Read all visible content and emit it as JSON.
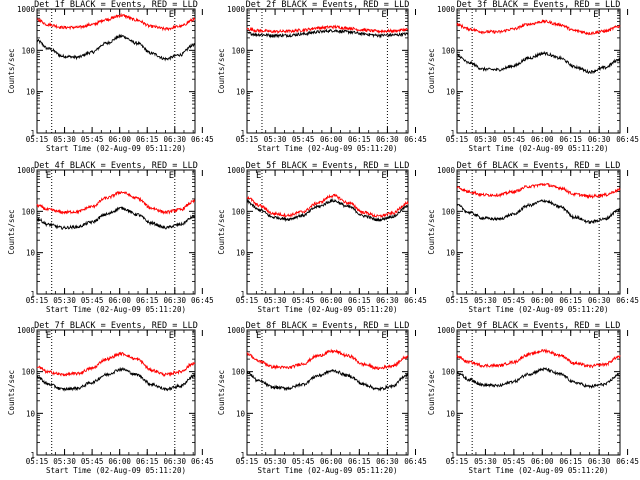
{
  "page": {
    "background": "#ffffff",
    "series_colors": {
      "events": "#000000",
      "lld": "#ff0000"
    }
  },
  "chart_data": [
    {
      "type": "line",
      "title": "Det 1f BLACK = Events, RED = LLD",
      "xlabel": "Start Time (02-Aug-09 05:11:20)",
      "ylabel": "Counts/sec",
      "yscale": "log",
      "ylim": [
        1,
        1000
      ],
      "xlim": [
        14,
        100
      ],
      "x_ticks": [
        "05:15",
        "05:30",
        "05:45",
        "06:00",
        "06:15",
        "06:30",
        "06:45"
      ],
      "y_ticks": [
        "1",
        "10",
        "100",
        "1000"
      ],
      "markers": [
        {
          "x": 22,
          "label": ""
        },
        {
          "x": 89,
          "label": "E"
        }
      ],
      "series": [
        {
          "name": "Events",
          "color": "#000000",
          "x": [
            14,
            20,
            28,
            36,
            44,
            52,
            60,
            68,
            76,
            84,
            92,
            100
          ],
          "values": [
            170,
            110,
            72,
            68,
            90,
            150,
            220,
            150,
            85,
            62,
            78,
            140
          ]
        },
        {
          "name": "LLD",
          "color": "#ff0000",
          "x": [
            14,
            20,
            28,
            36,
            44,
            52,
            60,
            68,
            76,
            84,
            92,
            100
          ],
          "values": [
            550,
            420,
            360,
            360,
            420,
            560,
            700,
            540,
            380,
            330,
            380,
            560
          ]
        }
      ]
    },
    {
      "type": "line",
      "title": "Det 2f BLACK = Events, RED = LLD",
      "xlabel": "Start Time (02-Aug-09 05:11:20)",
      "ylabel": "Counts/sec",
      "yscale": "log",
      "ylim": [
        1,
        1000
      ],
      "xlim": [
        14,
        100
      ],
      "x_ticks": [
        "05:15",
        "05:30",
        "05:45",
        "06:00",
        "06:15",
        "06:30",
        "06:45"
      ],
      "y_ticks": [
        "1",
        "10",
        "100",
        "1000"
      ],
      "markers": [
        {
          "x": 22,
          "label": ""
        },
        {
          "x": 89,
          "label": "E"
        }
      ],
      "series": [
        {
          "name": "Events",
          "color": "#000000",
          "x": [
            14,
            20,
            28,
            36,
            44,
            52,
            60,
            68,
            76,
            84,
            92,
            100
          ],
          "values": [
            260,
            240,
            230,
            230,
            250,
            280,
            300,
            280,
            250,
            230,
            235,
            250
          ]
        },
        {
          "name": "LLD",
          "color": "#ff0000",
          "x": [
            14,
            20,
            28,
            36,
            44,
            52,
            60,
            68,
            76,
            84,
            92,
            100
          ],
          "values": [
            330,
            300,
            285,
            290,
            310,
            350,
            370,
            345,
            310,
            290,
            295,
            320
          ]
        }
      ]
    },
    {
      "type": "line",
      "title": "Det 3f BLACK = Events, RED = LLD",
      "xlabel": "Start Time (02-Aug-09 05:11:20)",
      "ylabel": "Counts/sec",
      "yscale": "log",
      "ylim": [
        1,
        1000
      ],
      "xlim": [
        14,
        100
      ],
      "x_ticks": [
        "05:15",
        "05:30",
        "05:45",
        "06:00",
        "06:15",
        "06:30",
        "06:45"
      ],
      "y_ticks": [
        "1",
        "10",
        "100",
        "1000"
      ],
      "markers": [
        {
          "x": 22,
          "label": ""
        },
        {
          "x": 89,
          "label": "E"
        }
      ],
      "series": [
        {
          "name": "Events",
          "color": "#000000",
          "x": [
            14,
            20,
            28,
            36,
            44,
            52,
            60,
            68,
            76,
            84,
            92,
            100
          ],
          "values": [
            75,
            50,
            35,
            34,
            42,
            65,
            85,
            65,
            40,
            30,
            38,
            60
          ]
        },
        {
          "name": "LLD",
          "color": "#ff0000",
          "x": [
            14,
            20,
            28,
            36,
            44,
            52,
            60,
            68,
            76,
            84,
            92,
            100
          ],
          "values": [
            420,
            330,
            280,
            280,
            330,
            430,
            500,
            420,
            300,
            260,
            290,
            380
          ]
        }
      ]
    },
    {
      "type": "line",
      "title": "Det 4f BLACK = Events, RED = LLD",
      "xlabel": "Start Time (02-Aug-09 05:11:20)",
      "ylabel": "Counts/sec",
      "yscale": "log",
      "ylim": [
        1,
        1000
      ],
      "xlim": [
        14,
        100
      ],
      "x_ticks": [
        "05:15",
        "05:30",
        "05:45",
        "06:00",
        "06:15",
        "06:30",
        "06:45"
      ],
      "y_ticks": [
        "1",
        "10",
        "100",
        "1000"
      ],
      "markers": [
        {
          "x": 22,
          "label": "E"
        },
        {
          "x": 89,
          "label": "E"
        }
      ],
      "series": [
        {
          "name": "Events",
          "color": "#000000",
          "x": [
            14,
            20,
            28,
            36,
            44,
            52,
            60,
            68,
            76,
            84,
            92,
            100
          ],
          "values": [
            65,
            48,
            40,
            42,
            55,
            85,
            120,
            85,
            52,
            40,
            48,
            75
          ]
        },
        {
          "name": "LLD",
          "color": "#ff0000",
          "x": [
            14,
            20,
            28,
            36,
            44,
            52,
            60,
            68,
            76,
            84,
            92,
            100
          ],
          "values": [
            140,
            110,
            95,
            98,
            130,
            210,
            290,
            210,
            120,
            95,
            110,
            175
          ]
        }
      ]
    },
    {
      "type": "line",
      "title": "Det 5f BLACK = Events, RED = LLD",
      "xlabel": "Start Time (02-Aug-09 05:11:20)",
      "ylabel": "Counts/sec",
      "yscale": "log",
      "ylim": [
        1,
        1000
      ],
      "xlim": [
        14,
        100
      ],
      "x_ticks": [
        "05:15",
        "05:30",
        "05:45",
        "06:00",
        "06:15",
        "06:30",
        "06:45"
      ],
      "y_ticks": [
        "1",
        "10",
        "100",
        "1000"
      ],
      "markers": [
        {
          "x": 22,
          "label": "E"
        },
        {
          "x": 89,
          "label": "E"
        }
      ],
      "series": [
        {
          "name": "Events",
          "color": "#000000",
          "x": [
            14,
            20,
            28,
            36,
            44,
            52,
            60,
            68,
            76,
            84,
            92,
            100
          ],
          "values": [
            170,
            110,
            72,
            65,
            80,
            130,
            180,
            130,
            78,
            62,
            75,
            130
          ]
        },
        {
          "name": "LLD",
          "color": "#ff0000",
          "x": [
            14,
            20,
            28,
            36,
            44,
            52,
            60,
            68,
            76,
            84,
            92,
            100
          ],
          "values": [
            220,
            140,
            88,
            80,
            98,
            160,
            240,
            160,
            95,
            76,
            90,
            160
          ]
        }
      ]
    },
    {
      "type": "line",
      "title": "Det 6f BLACK = Events, RED = LLD",
      "xlabel": "Start Time (02-Aug-09 05:11:20)",
      "ylabel": "Counts/sec",
      "yscale": "log",
      "ylim": [
        1,
        1000
      ],
      "xlim": [
        14,
        100
      ],
      "x_ticks": [
        "05:15",
        "05:30",
        "05:45",
        "06:00",
        "06:15",
        "06:30",
        "06:45"
      ],
      "y_ticks": [
        "1",
        "10",
        "100",
        "1000"
      ],
      "markers": [
        {
          "x": 22,
          "label": ""
        },
        {
          "x": 89,
          "label": "E"
        }
      ],
      "series": [
        {
          "name": "Events",
          "color": "#000000",
          "x": [
            14,
            20,
            28,
            36,
            44,
            52,
            60,
            68,
            76,
            84,
            92,
            100
          ],
          "values": [
            140,
            95,
            68,
            65,
            85,
            140,
            180,
            130,
            72,
            55,
            65,
            110
          ]
        },
        {
          "name": "LLD",
          "color": "#ff0000",
          "x": [
            14,
            20,
            28,
            36,
            44,
            52,
            60,
            68,
            76,
            84,
            92,
            100
          ],
          "values": [
            380,
            300,
            250,
            250,
            300,
            400,
            450,
            370,
            260,
            230,
            250,
            330
          ]
        }
      ]
    },
    {
      "type": "line",
      "title": "Det 7f BLACK = Events, RED = LLD",
      "xlabel": "Start Time (02-Aug-09 05:11:20)",
      "ylabel": "Counts/sec",
      "yscale": "log",
      "ylim": [
        1,
        1000
      ],
      "xlim": [
        14,
        100
      ],
      "x_ticks": [
        "05:15",
        "05:30",
        "05:45",
        "06:00",
        "06:15",
        "06:30",
        "06:45"
      ],
      "y_ticks": [
        "1",
        "10",
        "100",
        "1000"
      ],
      "markers": [
        {
          "x": 22,
          "label": "E"
        },
        {
          "x": 89,
          "label": "E"
        }
      ],
      "series": [
        {
          "name": "Events",
          "color": "#000000",
          "x": [
            14,
            20,
            28,
            36,
            44,
            52,
            60,
            68,
            76,
            84,
            92,
            100
          ],
          "values": [
            75,
            50,
            38,
            40,
            55,
            85,
            115,
            85,
            50,
            38,
            45,
            80
          ]
        },
        {
          "name": "LLD",
          "color": "#ff0000",
          "x": [
            14,
            20,
            28,
            36,
            44,
            52,
            60,
            68,
            76,
            84,
            92,
            100
          ],
          "values": [
            130,
            98,
            85,
            90,
            120,
            200,
            270,
            200,
            110,
            85,
            100,
            160
          ]
        }
      ]
    },
    {
      "type": "line",
      "title": "Det 8f BLACK = Events, RED = LLD",
      "xlabel": "Start Time (02-Aug-09 05:11:20)",
      "ylabel": "Counts/sec",
      "yscale": "log",
      "ylim": [
        1,
        1000
      ],
      "xlim": [
        14,
        100
      ],
      "x_ticks": [
        "05:15",
        "05:30",
        "05:45",
        "06:00",
        "06:15",
        "06:30",
        "06:45"
      ],
      "y_ticks": [
        "1",
        "10",
        "100",
        "1000"
      ],
      "markers": [
        {
          "x": 22,
          "label": "E"
        },
        {
          "x": 89,
          "label": "E"
        }
      ],
      "series": [
        {
          "name": "Events",
          "color": "#000000",
          "x": [
            14,
            20,
            28,
            36,
            44,
            52,
            60,
            68,
            76,
            84,
            92,
            100
          ],
          "values": [
            95,
            60,
            42,
            40,
            50,
            80,
            105,
            80,
            50,
            38,
            45,
            85
          ]
        },
        {
          "name": "LLD",
          "color": "#ff0000",
          "x": [
            14,
            20,
            28,
            36,
            44,
            52,
            60,
            68,
            76,
            84,
            92,
            100
          ],
          "values": [
            270,
            180,
            130,
            125,
            155,
            240,
            310,
            240,
            150,
            120,
            140,
            230
          ]
        }
      ]
    },
    {
      "type": "line",
      "title": "Det 9f BLACK = Events, RED = LLD",
      "xlabel": "Start Time (02-Aug-09 05:11:20)",
      "ylabel": "Counts/sec",
      "yscale": "log",
      "ylim": [
        1,
        1000
      ],
      "xlim": [
        14,
        100
      ],
      "x_ticks": [
        "05:15",
        "05:30",
        "05:45",
        "06:00",
        "06:15",
        "06:30",
        "06:45"
      ],
      "y_ticks": [
        "1",
        "10",
        "100",
        "1000"
      ],
      "markers": [
        {
          "x": 22,
          "label": ""
        },
        {
          "x": 89,
          "label": "E"
        }
      ],
      "series": [
        {
          "name": "Events",
          "color": "#000000",
          "x": [
            14,
            20,
            28,
            36,
            44,
            52,
            60,
            68,
            76,
            84,
            92,
            100
          ],
          "values": [
            95,
            65,
            48,
            46,
            58,
            88,
            115,
            88,
            55,
            44,
            50,
            85
          ]
        },
        {
          "name": "LLD",
          "color": "#ff0000",
          "x": [
            14,
            20,
            28,
            36,
            44,
            52,
            60,
            68,
            76,
            84,
            92,
            100
          ],
          "values": [
            230,
            170,
            140,
            140,
            170,
            260,
            320,
            250,
            160,
            135,
            150,
            230
          ]
        }
      ]
    }
  ]
}
